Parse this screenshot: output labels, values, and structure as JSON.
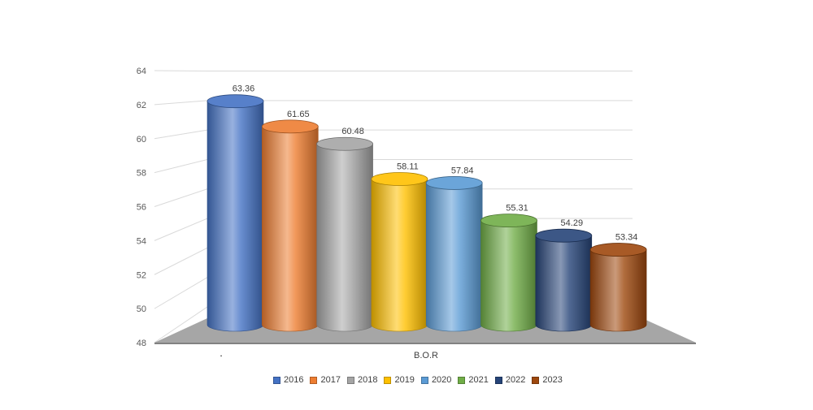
{
  "chart_data": {
    "type": "bar",
    "variant": "3d-cylinder",
    "title": "",
    "xlabel": "",
    "ylabel": "",
    "categories": [
      "B.O.R"
    ],
    "series": [
      {
        "name": "2016",
        "values": [
          63.36
        ],
        "color": "#4472C4"
      },
      {
        "name": "2017",
        "values": [
          61.65
        ],
        "color": "#ED7D31"
      },
      {
        "name": "2018",
        "values": [
          60.48
        ],
        "color": "#A5A5A5"
      },
      {
        "name": "2019",
        "values": [
          58.11
        ],
        "color": "#FFC000"
      },
      {
        "name": "2020",
        "values": [
          57.84
        ],
        "color": "#5B9BD5"
      },
      {
        "name": "2021",
        "values": [
          55.31
        ],
        "color": "#70AD47"
      },
      {
        "name": "2022",
        "values": [
          54.29
        ],
        "color": "#264478"
      },
      {
        "name": "2023",
        "values": [
          53.34
        ],
        "color": "#9E480E"
      }
    ],
    "ylim": [
      48,
      64
    ],
    "yticks": [
      "48",
      "50",
      "52",
      "54",
      "56",
      "58",
      "60",
      "62",
      "64"
    ],
    "data_labels": [
      "63.36",
      "61.65",
      "60.48",
      "58.11",
      "57.84",
      "55.31",
      "54.29",
      "53.34"
    ],
    "grid": true,
    "legend_position": "bottom",
    "stray_label": "."
  }
}
